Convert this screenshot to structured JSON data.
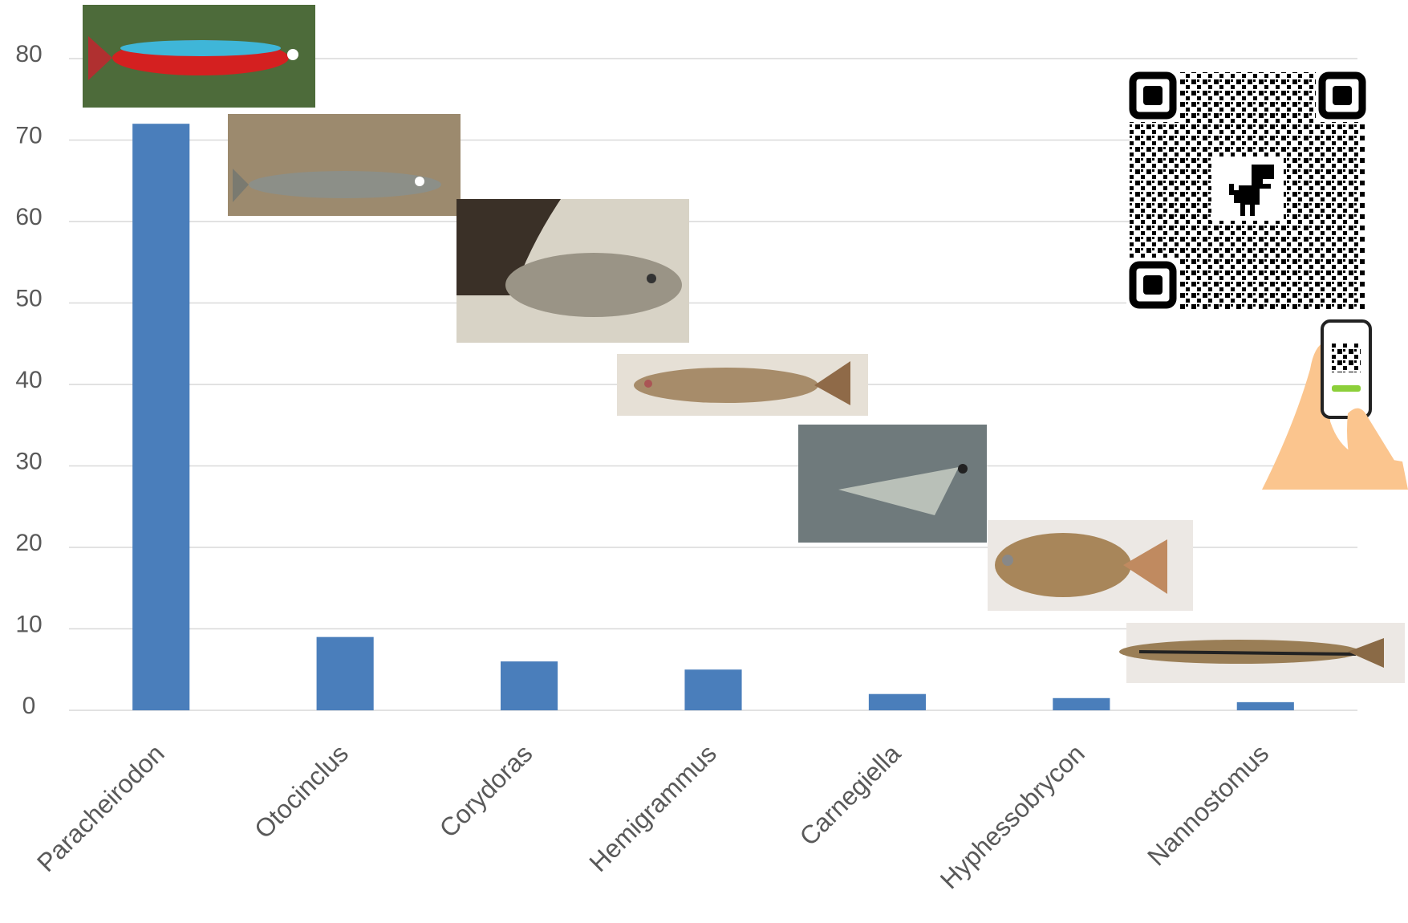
{
  "chart_data": {
    "type": "bar",
    "categories": [
      "Paracheirodon",
      "Otocinclus",
      "Corydoras",
      "Hemigrammus",
      "Carnegiella",
      "Hyphessobrycon",
      "Nannostomus"
    ],
    "values": [
      72,
      9,
      6,
      5,
      2,
      1.5,
      1
    ],
    "color": "#4a7ebb",
    "ylim": [
      0,
      80
    ],
    "yticks": [
      0,
      10,
      20,
      30,
      40,
      50,
      60,
      70,
      80
    ],
    "grid": true
  }
}
